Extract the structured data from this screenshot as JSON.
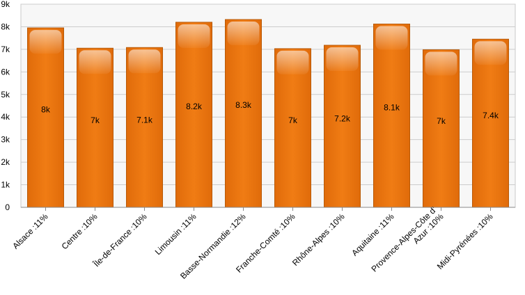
{
  "chart_data": {
    "type": "bar",
    "categories": [
      [
        "Alsace :11%"
      ],
      [
        "Centre :10%"
      ],
      [
        "Île-de-France :10%"
      ],
      [
        "Limousin :11%"
      ],
      [
        "Basse-Normandie :12%"
      ],
      [
        "Franche-Comté :10%"
      ],
      [
        "Rhône-Alpes :10%"
      ],
      [
        "Aquitaine :11%"
      ],
      [
        "Provence-Alpes-Côte d'",
        "Azur :10%"
      ],
      [
        "Midi-Pyrénées :10%"
      ]
    ],
    "values": [
      7950,
      7050,
      7080,
      8200,
      8320,
      7030,
      7180,
      8120,
      6980,
      7450
    ],
    "data_labels": [
      "8k",
      "7k",
      "7.1k",
      "8.2k",
      "8.3k",
      "7k",
      "7.2k",
      "8.1k",
      "7k",
      "7.4k"
    ],
    "yticks": [
      {
        "value": 0,
        "label": "0"
      },
      {
        "value": 1000,
        "label": "1k"
      },
      {
        "value": 2000,
        "label": "2k"
      },
      {
        "value": 3000,
        "label": "3k"
      },
      {
        "value": 4000,
        "label": "4k"
      },
      {
        "value": 5000,
        "label": "5k"
      },
      {
        "value": 6000,
        "label": "6k"
      },
      {
        "value": 7000,
        "label": "7k"
      },
      {
        "value": 8000,
        "label": "8k"
      },
      {
        "value": 9000,
        "label": "9k"
      }
    ],
    "ylim": [
      0,
      9000
    ],
    "grid": true,
    "colors": {
      "bar": "#ee7711",
      "bar_border": "#b85a08",
      "plot_bg": "#f7f7f7",
      "grid": "#cccccc"
    }
  }
}
